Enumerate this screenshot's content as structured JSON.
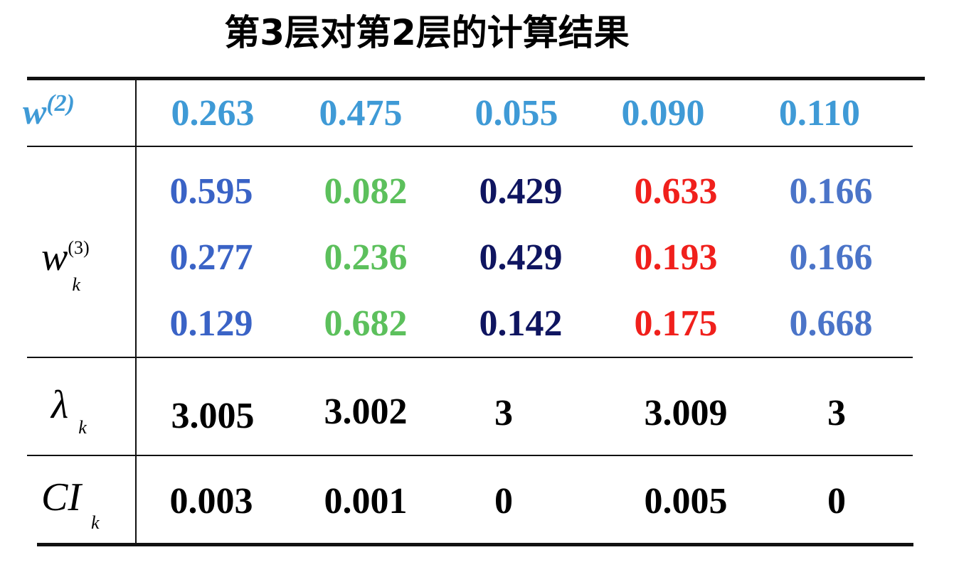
{
  "title": "第3层对第2层的计算结果",
  "colors": {
    "w2": "#3f9ad6",
    "col1": "#3a63c6",
    "col2": "#5cc05c",
    "col3": "#0f1560",
    "col4": "#f0201c",
    "col5": "#4b74c8",
    "black": "#000000"
  },
  "labels": {
    "w2_main": "w",
    "w2_sup": "(2)",
    "w3_main": "w",
    "w3_sup": "(3)",
    "w3_sub": "k",
    "lambda_main": "λ",
    "lambda_sub": "k",
    "ci_main": "CI",
    "ci_sub": "k"
  },
  "table": {
    "w2": [
      "0.263",
      "0.475",
      "0.055",
      "0.090",
      "0.110"
    ],
    "w3": [
      [
        "0.595",
        "0.082",
        "0.429",
        "0.633",
        "0.166"
      ],
      [
        "0.277",
        "0.236",
        "0.429",
        "0.193",
        "0.166"
      ],
      [
        "0.129",
        "0.682",
        "0.142",
        "0.175",
        "0.668"
      ]
    ],
    "lambda": [
      "3.005",
      "3.002",
      "3",
      "3.009",
      "3"
    ],
    "ci": [
      "0.003",
      "0.001",
      "0",
      "0.005",
      "0"
    ]
  }
}
